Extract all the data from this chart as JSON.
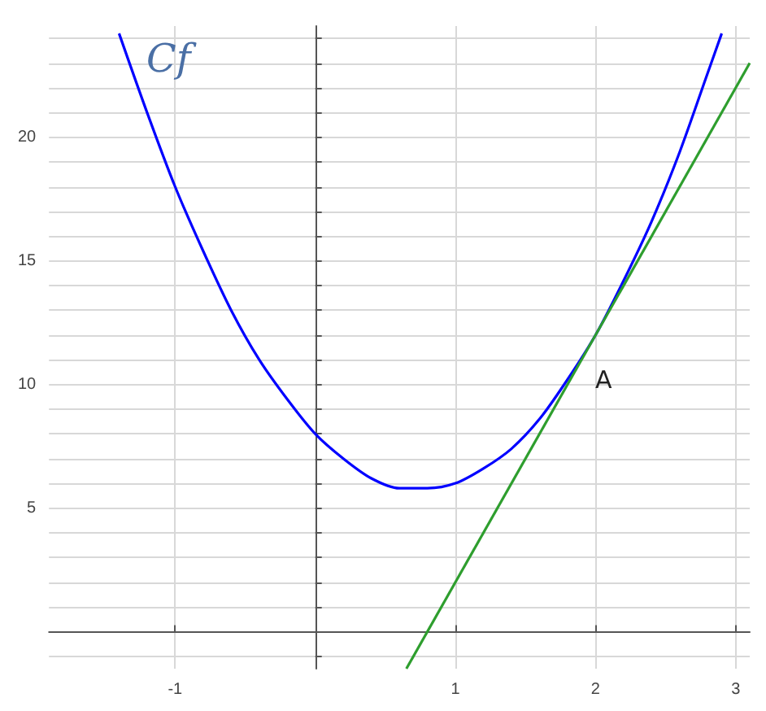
{
  "chart_data": {
    "type": "line",
    "xlim": [
      -1.9,
      3.1
    ],
    "ylim": [
      -1.5,
      24.5
    ],
    "xticks": [
      -1,
      1,
      2,
      3
    ],
    "yticks": [
      {
        "value": -1,
        "label": null
      },
      {
        "value": 1,
        "label": null
      },
      {
        "value": 2,
        "label": null
      },
      {
        "value": 3,
        "label": null
      },
      {
        "value": 4,
        "label": null
      },
      5,
      {
        "value": 6,
        "label": null
      },
      {
        "value": 7,
        "label": null
      },
      {
        "value": 8,
        "label": null
      },
      {
        "value": 9,
        "label": null
      },
      10,
      {
        "value": 11,
        "label": null
      },
      {
        "value": 12,
        "label": null
      },
      {
        "value": 13,
        "label": null
      },
      {
        "value": 14,
        "label": null
      },
      15,
      {
        "value": 16,
        "label": null
      },
      {
        "value": 17,
        "label": null
      },
      {
        "value": 18,
        "label": null
      },
      {
        "value": 19,
        "label": null
      },
      20,
      {
        "value": 21,
        "label": null
      },
      {
        "value": 22,
        "label": null
      },
      {
        "value": 23,
        "label": null
      },
      {
        "value": 24,
        "label": null
      }
    ],
    "grid": true,
    "marker": "none",
    "line_style": "solid",
    "series": [
      {
        "color": "#0000ff",
        "x": [
          -1.4,
          -1.2,
          -1.0,
          -0.8,
          -0.6,
          -0.4,
          -0.2,
          0,
          0.2,
          0.4,
          0.6,
          0.8,
          1.0,
          1.2,
          1.4,
          1.6,
          1.8,
          2.0,
          2.2,
          2.4,
          2.6,
          2.8,
          2.9
        ],
        "values": [
          24.2,
          21.0,
          18,
          15.4,
          13.0,
          11.0,
          9.4,
          8,
          7.0,
          6.2,
          5.8,
          5.8,
          6,
          6.6,
          7.4,
          8.6,
          10.2,
          12,
          14.2,
          16.6,
          19.4,
          22.6,
          24.2
        ]
      },
      {
        "color": "#2e9e2e",
        "x": [
          0.65,
          3.1
        ],
        "values": [
          -1.5,
          23
        ]
      }
    ],
    "annotations": [
      "Cf",
      "A"
    ]
  }
}
